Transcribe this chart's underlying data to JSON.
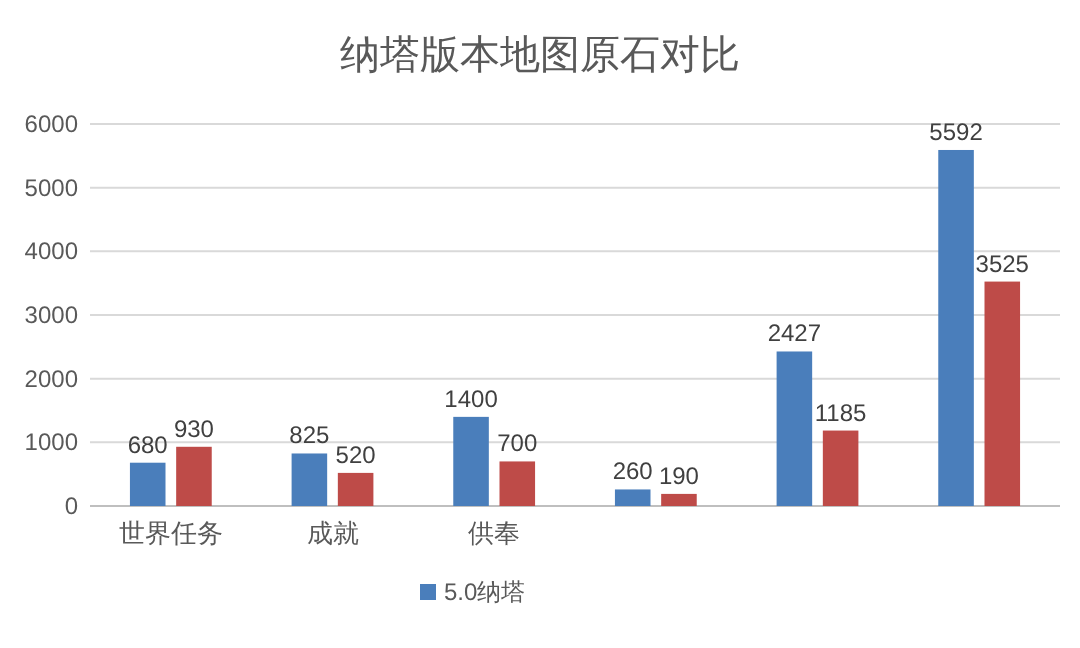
{
  "chart_data": {
    "type": "bar",
    "title": "纳塔版本地图原石对比",
    "categories": [
      "世界任务",
      "成就",
      "供奉",
      null,
      null,
      null
    ],
    "series": [
      {
        "name": "5.0纳塔",
        "color": "#4a7ebb",
        "values": [
          680,
          825,
          1400,
          260,
          2427,
          5592
        ]
      },
      {
        "color": "#be4b48",
        "values": [
          930,
          520,
          700,
          190,
          1185,
          3525
        ]
      }
    ],
    "ylim": [
      0,
      6000
    ],
    "yticks": [
      0,
      1000,
      2000,
      3000,
      4000,
      5000,
      6000
    ],
    "grid": "y",
    "legend": "bottom",
    "data_labels": true
  }
}
